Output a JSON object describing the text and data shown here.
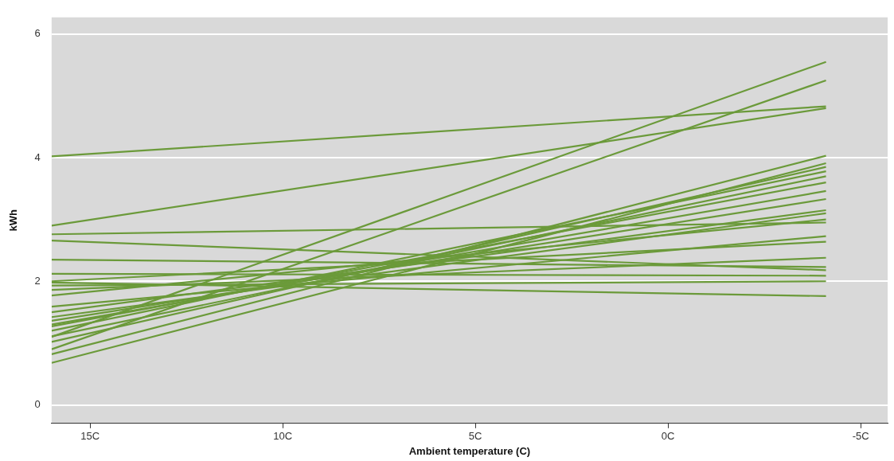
{
  "chart_data": {
    "type": "line",
    "xlabel": "Ambient temperature (C)",
    "ylabel": "kWh",
    "x": [
      16,
      -4.1
    ],
    "xlim": [
      16,
      -5.7
    ],
    "xticks": [
      {
        "value": 15,
        "label": "15C"
      },
      {
        "value": 10,
        "label": "10C"
      },
      {
        "value": 5,
        "label": "5C"
      },
      {
        "value": 0,
        "label": "0C"
      },
      {
        "value": -5,
        "label": "-5C"
      }
    ],
    "ylim": [
      -0.3,
      6.27
    ],
    "yticks": [
      0,
      2,
      4,
      6
    ],
    "grid": "y",
    "marker": "none",
    "line_style": "solid",
    "legend": false,
    "series": [
      {
        "color": "#6b9a3a",
        "values": [
          4.02,
          4.83
        ]
      },
      {
        "color": "#6b9a3a",
        "values": [
          2.9,
          4.8
        ]
      },
      {
        "color": "#6b9a3a",
        "values": [
          1.1,
          5.55
        ]
      },
      {
        "color": "#6b9a3a",
        "values": [
          0.9,
          5.25
        ]
      },
      {
        "color": "#6b9a3a",
        "values": [
          2.76,
          2.95
        ]
      },
      {
        "color": "#6b9a3a",
        "values": [
          2.66,
          2.18
        ]
      },
      {
        "color": "#6b9a3a",
        "values": [
          2.35,
          2.23
        ]
      },
      {
        "color": "#6b9a3a",
        "values": [
          2.12,
          2.09
        ]
      },
      {
        "color": "#6b9a3a",
        "values": [
          1.98,
          1.76
        ]
      },
      {
        "color": "#6b9a3a",
        "values": [
          1.93,
          2.0
        ]
      },
      {
        "color": "#6b9a3a",
        "values": [
          1.86,
          2.38
        ]
      },
      {
        "color": "#6b9a3a",
        "values": [
          1.77,
          3.0
        ]
      },
      {
        "color": "#6b9a3a",
        "values": [
          1.59,
          2.73
        ]
      },
      {
        "color": "#6b9a3a",
        "values": [
          1.42,
          3.1
        ]
      },
      {
        "color": "#6b9a3a",
        "values": [
          1.36,
          3.33
        ]
      },
      {
        "color": "#6b9a3a",
        "values": [
          1.27,
          3.6
        ]
      },
      {
        "color": "#6b9a3a",
        "values": [
          1.2,
          3.78
        ]
      },
      {
        "color": "#6b9a3a",
        "values": [
          1.11,
          3.7
        ]
      },
      {
        "color": "#6b9a3a",
        "values": [
          1.02,
          3.85
        ]
      },
      {
        "color": "#6b9a3a",
        "values": [
          0.82,
          4.03
        ]
      },
      {
        "color": "#6b9a3a",
        "values": [
          0.68,
          3.91
        ]
      },
      {
        "color": "#6b9a3a",
        "values": [
          1.3,
          3.46
        ]
      },
      {
        "color": "#6b9a3a",
        "values": [
          1.5,
          3.15
        ]
      },
      {
        "color": "#6b9a3a",
        "values": [
          2.0,
          2.64
        ]
      }
    ]
  }
}
